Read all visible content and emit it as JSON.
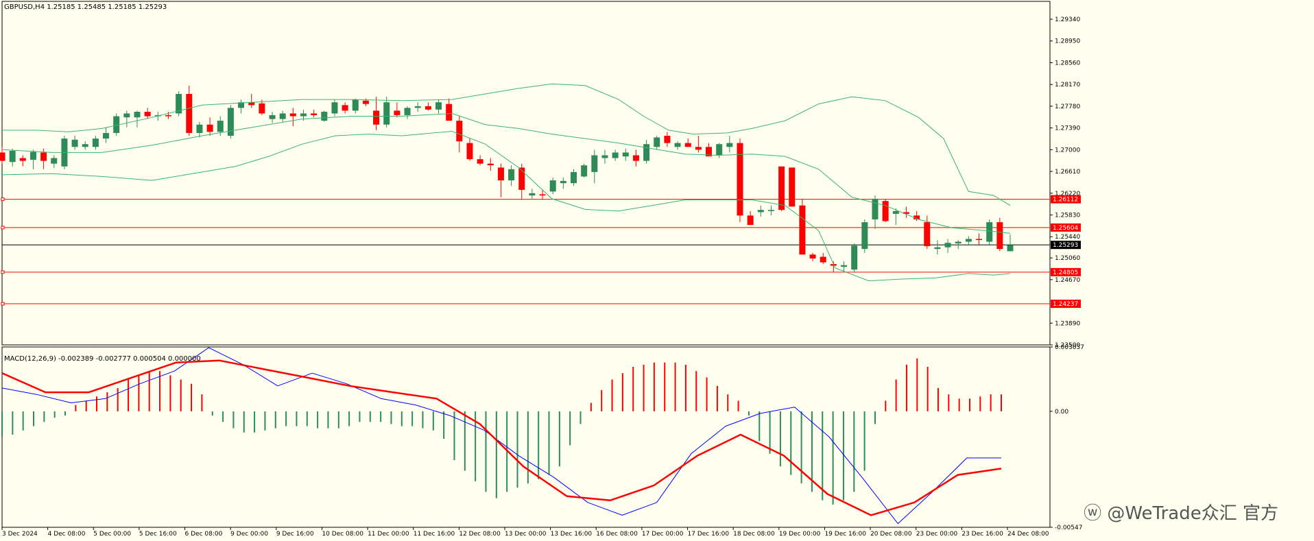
{
  "colors": {
    "background": "#fffff0",
    "bull": "#2e8b57",
    "bear": "#ff0000",
    "bands": "#3cb371",
    "level_line": "#ff0000",
    "current_line": "#000000",
    "macd_line": "#0000ff",
    "signal_line": "#ff0000"
  },
  "main_header": "GBPUSD,H4  1.25185 1.25485 1.25185 1.25293",
  "macd_header": "MACD(12,26,9) -0.002389 -0.002777 0.000504 0.000000",
  "watermark": "ⓦ @WeTrade众汇 官方",
  "chart_data": [
    {
      "type": "candlestick",
      "symbol": "GBPUSD",
      "timeframe": "H4",
      "ohlc_header": {
        "open": 1.25185,
        "high": 1.25485,
        "low": 1.25185,
        "close": 1.25293
      },
      "y_range": [
        1.235,
        1.2966
      ],
      "y_ticks": [
        "1.29340",
        "1.28950",
        "1.28560",
        "1.28170",
        "1.27780",
        "1.27390",
        "1.27000",
        "1.26610",
        "1.26220",
        "1.25830",
        "1.25440",
        "1.25060",
        "1.24670",
        "1.23890",
        "1.23500"
      ],
      "x_labels": [
        "3 Dec 2024",
        "4 Dec 08:00",
        "5 Dec 00:00",
        "5 Dec 16:00",
        "6 Dec 08:00",
        "9 Dec 00:00",
        "9 Dec 16:00",
        "10 Dec 08:00",
        "11 Dec 00:00",
        "11 Dec 16:00",
        "12 Dec 08:00",
        "13 Dec 00:00",
        "13 Dec 16:00",
        "16 Dec 08:00",
        "17 Dec 00:00",
        "17 Dec 16:00",
        "18 Dec 08:00",
        "19 Dec 00:00",
        "19 Dec 16:00",
        "20 Dec 08:00",
        "23 Dec 00:00",
        "23 Dec 16:00",
        "24 Dec 08:00"
      ],
      "levels": [
        {
          "label": "1.26112",
          "value": 1.26112,
          "color": "#ff0000"
        },
        {
          "label": "1.25604",
          "value": 1.25604,
          "color": "#ff0000"
        },
        {
          "label": "1.25293",
          "value": 1.25293,
          "color": "#000000"
        },
        {
          "label": "1.24805",
          "value": 1.24805,
          "color": "#ff0000"
        },
        {
          "label": "1.24237",
          "value": 1.24237,
          "color": "#ff0000"
        }
      ],
      "candles": [
        [
          1.2695,
          1.2705,
          1.2675,
          1.268
        ],
        [
          1.2678,
          1.2702,
          1.267,
          1.2698
        ],
        [
          1.2685,
          1.269,
          1.267,
          1.268
        ],
        [
          1.2682,
          1.27,
          1.2665,
          1.2696
        ],
        [
          1.2695,
          1.2702,
          1.2665,
          1.268
        ],
        [
          1.2675,
          1.269,
          1.2667,
          1.2685
        ],
        [
          1.267,
          1.2725,
          1.2665,
          1.272
        ],
        [
          1.2705,
          1.2725,
          1.27,
          1.2718
        ],
        [
          1.2705,
          1.2715,
          1.27,
          1.271
        ],
        [
          1.2705,
          1.2725,
          1.27,
          1.272
        ],
        [
          1.272,
          1.274,
          1.2712,
          1.273
        ],
        [
          1.273,
          1.2765,
          1.2725,
          1.276
        ],
        [
          1.2758,
          1.277,
          1.274,
          1.2765
        ],
        [
          1.2758,
          1.277,
          1.274,
          1.2768
        ],
        [
          1.2768,
          1.2775,
          1.2755,
          1.276
        ],
        [
          1.276,
          1.2768,
          1.2752,
          1.2762
        ],
        [
          1.2762,
          1.2768,
          1.2755,
          1.276
        ],
        [
          1.2765,
          1.2805,
          1.276,
          1.28
        ],
        [
          1.28,
          1.2815,
          1.2725,
          1.273
        ],
        [
          1.273,
          1.275,
          1.2722,
          1.2745
        ],
        [
          1.2745,
          1.2758,
          1.2725,
          1.2732
        ],
        [
          1.2732,
          1.276,
          1.2725,
          1.2752
        ],
        [
          1.2725,
          1.278,
          1.272,
          1.2775
        ],
        [
          1.2775,
          1.279,
          1.2765,
          1.2785
        ],
        [
          1.2785,
          1.28,
          1.2775,
          1.278
        ],
        [
          1.2783,
          1.279,
          1.2762,
          1.2765
        ],
        [
          1.2755,
          1.2768,
          1.2748,
          1.2762
        ],
        [
          1.2755,
          1.277,
          1.275,
          1.2765
        ],
        [
          1.2765,
          1.2775,
          1.2742,
          1.276
        ],
        [
          1.276,
          1.2772,
          1.2752,
          1.2765
        ],
        [
          1.2765,
          1.2772,
          1.2758,
          1.2762
        ],
        [
          1.2752,
          1.277,
          1.275,
          1.2768
        ],
        [
          1.2765,
          1.279,
          1.276,
          1.2785
        ],
        [
          1.278,
          1.2785,
          1.2765,
          1.277
        ],
        [
          1.277,
          1.2792,
          1.2765,
          1.279
        ],
        [
          1.2788,
          1.2792,
          1.2778,
          1.2782
        ],
        [
          1.277,
          1.2795,
          1.2735,
          1.2745
        ],
        [
          1.2745,
          1.2795,
          1.274,
          1.2785
        ],
        [
          1.277,
          1.2785,
          1.2758,
          1.2762
        ],
        [
          1.2762,
          1.2778,
          1.2755,
          1.2775
        ],
        [
          1.2775,
          1.2785,
          1.2768,
          1.2778
        ],
        [
          1.2778,
          1.2785,
          1.277,
          1.2772
        ],
        [
          1.2772,
          1.279,
          1.2765,
          1.2785
        ],
        [
          1.2782,
          1.2792,
          1.2755,
          1.2752
        ],
        [
          1.2752,
          1.276,
          1.2695,
          1.2715
        ],
        [
          1.2712,
          1.272,
          1.268,
          1.2683
        ],
        [
          1.2683,
          1.269,
          1.2672,
          1.2675
        ],
        [
          1.2675,
          1.2685,
          1.2662,
          1.2672
        ],
        [
          1.2668,
          1.2675,
          1.2615,
          1.2645
        ],
        [
          1.2645,
          1.2672,
          1.2635,
          1.2665
        ],
        [
          1.2668,
          1.2675,
          1.261,
          1.2628
        ],
        [
          1.2618,
          1.263,
          1.2612,
          1.2622
        ],
        [
          1.262,
          1.2628,
          1.261,
          1.2618
        ],
        [
          1.2625,
          1.265,
          1.262,
          1.2645
        ],
        [
          1.264,
          1.265,
          1.263,
          1.2644
        ],
        [
          1.264,
          1.2665,
          1.2635,
          1.266
        ],
        [
          1.2652,
          1.2675,
          1.265,
          1.2672
        ],
        [
          1.266,
          1.27,
          1.264,
          1.269
        ],
        [
          1.2685,
          1.27,
          1.2675,
          1.269
        ],
        [
          1.2685,
          1.27,
          1.268,
          1.2695
        ],
        [
          1.2688,
          1.2702,
          1.268,
          1.2695
        ],
        [
          1.269,
          1.27,
          1.267,
          1.268
        ],
        [
          1.268,
          1.2718,
          1.2675,
          1.271
        ],
        [
          1.2705,
          1.2725,
          1.27,
          1.2722
        ],
        [
          1.2725,
          1.2732,
          1.2705,
          1.2712
        ],
        [
          1.2705,
          1.2715,
          1.27,
          1.2712
        ],
        [
          1.2712,
          1.272,
          1.2705,
          1.2705
        ],
        [
          1.2705,
          1.2725,
          1.2695,
          1.27
        ],
        [
          1.2705,
          1.2712,
          1.2688,
          1.2688
        ],
        [
          1.269,
          1.2712,
          1.2685,
          1.271
        ],
        [
          1.2705,
          1.2725,
          1.2695,
          1.2712
        ],
        [
          1.2712,
          1.272,
          1.257,
          1.2582
        ],
        [
          1.2582,
          1.259,
          1.2565,
          1.2565
        ],
        [
          1.2588,
          1.26,
          1.258,
          1.2592
        ],
        [
          1.259,
          1.26,
          1.2582,
          1.2592
        ],
        [
          1.267,
          1.267,
          1.259,
          1.2592
        ],
        [
          1.2668,
          1.2668,
          1.2598,
          1.2598
        ],
        [
          1.26,
          1.2612,
          1.2512,
          1.2512
        ],
        [
          1.2512,
          1.2515,
          1.25,
          1.2505
        ],
        [
          1.2508,
          1.2515,
          1.2495,
          1.2498
        ],
        [
          1.2495,
          1.25,
          1.248,
          1.2492
        ],
        [
          1.249,
          1.25,
          1.2482,
          1.2493
        ],
        [
          1.2485,
          1.2532,
          1.248,
          1.2528
        ],
        [
          1.2522,
          1.2575,
          1.2515,
          1.257
        ],
        [
          1.2575,
          1.2618,
          1.2558,
          1.2612
        ],
        [
          1.2608,
          1.2612,
          1.257,
          1.2572
        ],
        [
          1.2585,
          1.2595,
          1.2565,
          1.259
        ],
        [
          1.2588,
          1.2598,
          1.2578,
          1.2585
        ],
        [
          1.2582,
          1.259,
          1.2572,
          1.2575
        ],
        [
          1.257,
          1.2582,
          1.2522,
          1.2527
        ],
        [
          1.2522,
          1.2538,
          1.2512,
          1.2525
        ],
        [
          1.2525,
          1.254,
          1.2515,
          1.2533
        ],
        [
          1.2532,
          1.2538,
          1.2522,
          1.2535
        ],
        [
          1.2535,
          1.2545,
          1.2528,
          1.254
        ],
        [
          1.254,
          1.255,
          1.253,
          1.2538
        ],
        [
          1.2535,
          1.2575,
          1.253,
          1.257
        ],
        [
          1.257,
          1.2578,
          1.2518,
          1.2522
        ],
        [
          1.2518,
          1.2548,
          1.2518,
          1.2529
        ]
      ],
      "bollinger": {
        "upper": [
          [
            0,
            1.2735
          ],
          [
            40,
            1.2735
          ],
          [
            80,
            1.2732
          ],
          [
            120,
            1.2738
          ],
          [
            180,
            1.2758
          ],
          [
            240,
            1.278
          ],
          [
            300,
            1.2785
          ],
          [
            360,
            1.279
          ],
          [
            420,
            1.279
          ],
          [
            480,
            1.2788
          ],
          [
            540,
            1.279
          ],
          [
            580,
            1.28
          ],
          [
            620,
            1.281
          ],
          [
            660,
            1.2818
          ],
          [
            700,
            1.2815
          ],
          [
            740,
            1.279
          ],
          [
            770,
            1.276
          ],
          [
            800,
            1.2735
          ],
          [
            830,
            1.2728
          ],
          [
            870,
            1.273
          ],
          [
            900,
            1.2738
          ],
          [
            940,
            1.2752
          ],
          [
            980,
            1.2782
          ],
          [
            1020,
            1.2795
          ],
          [
            1060,
            1.2788
          ],
          [
            1100,
            1.2758
          ],
          [
            1130,
            1.272
          ],
          [
            1160,
            1.2625
          ],
          [
            1190,
            1.2618
          ],
          [
            1210,
            1.26
          ]
        ],
        "middle": [
          [
            0,
            1.27
          ],
          [
            60,
            1.2695
          ],
          [
            120,
            1.2695
          ],
          [
            180,
            1.2708
          ],
          [
            240,
            1.2725
          ],
          [
            300,
            1.274
          ],
          [
            360,
            1.2755
          ],
          [
            420,
            1.276
          ],
          [
            480,
            1.276
          ],
          [
            540,
            1.2765
          ],
          [
            580,
            1.2745
          ],
          [
            620,
            1.2738
          ],
          [
            660,
            1.2728
          ],
          [
            700,
            1.272
          ],
          [
            740,
            1.2712
          ],
          [
            780,
            1.2702
          ],
          [
            820,
            1.2692
          ],
          [
            860,
            1.269
          ],
          [
            900,
            1.2692
          ],
          [
            940,
            1.2688
          ],
          [
            980,
            1.2665
          ],
          [
            1020,
            1.2615
          ],
          [
            1060,
            1.26
          ],
          [
            1100,
            1.2575
          ],
          [
            1140,
            1.256
          ],
          [
            1180,
            1.2555
          ],
          [
            1210,
            1.255
          ]
        ],
        "lower": [
          [
            0,
            1.2655
          ],
          [
            60,
            1.2657
          ],
          [
            120,
            1.2652
          ],
          [
            180,
            1.2645
          ],
          [
            240,
            1.266
          ],
          [
            280,
            1.267
          ],
          [
            320,
            1.2688
          ],
          [
            360,
            1.271
          ],
          [
            400,
            1.2725
          ],
          [
            440,
            1.2728
          ],
          [
            480,
            1.2725
          ],
          [
            540,
            1.2733
          ],
          [
            580,
            1.271
          ],
          [
            620,
            1.2668
          ],
          [
            660,
            1.2612
          ],
          [
            700,
            1.2593
          ],
          [
            740,
            1.259
          ],
          [
            780,
            1.26
          ],
          [
            820,
            1.261
          ],
          [
            860,
            1.261
          ],
          [
            900,
            1.261
          ],
          [
            940,
            1.26
          ],
          [
            980,
            1.2555
          ],
          [
            1000,
            1.2488
          ],
          [
            1040,
            1.2465
          ],
          [
            1080,
            1.2468
          ],
          [
            1120,
            1.247
          ],
          [
            1160,
            1.2478
          ],
          [
            1190,
            1.2475
          ],
          [
            1210,
            1.2478
          ]
        ]
      }
    },
    {
      "type": "bar",
      "indicator": "MACD(12,26,9)",
      "values_header": {
        "macd": -0.002389,
        "signal": -0.002777,
        "histogram": 0.000504
      },
      "y_range": [
        -0.00547,
        0.003037
      ],
      "y_ticks": [
        "0.003037",
        "0.00",
        "-0.00547"
      ],
      "histogram": [
        -0.0012,
        -0.0011,
        -0.0009,
        -0.0007,
        -0.0005,
        -0.0003,
        -0.0002,
        0.0003,
        0.0005,
        0.0007,
        0.0009,
        0.0011,
        0.0015,
        0.0017,
        0.0019,
        0.0019,
        0.0017,
        0.0015,
        0.0013,
        0.0008,
        -0.0002,
        -0.0005,
        -0.0008,
        -0.001,
        -0.001,
        -0.0009,
        -0.0008,
        -0.0007,
        -0.0007,
        -0.0007,
        -0.0008,
        -0.0008,
        -0.0008,
        -0.0007,
        -0.0005,
        -0.0005,
        -0.0005,
        -0.0006,
        -0.0007,
        -0.0007,
        -0.0008,
        -0.0009,
        -0.0013,
        -0.0023,
        -0.0028,
        -0.0033,
        -0.0038,
        -0.0041,
        -0.0038,
        -0.0036,
        -0.0034,
        -0.0032,
        -0.003,
        -0.0026,
        -0.0016,
        -0.0006,
        0.0004,
        0.001,
        0.0015,
        0.0018,
        0.0021,
        0.0022,
        0.0023,
        0.0023,
        0.0023,
        0.0022,
        0.0019,
        0.0016,
        0.0012,
        0.0008,
        0.0005,
        -0.0002,
        -0.0014,
        -0.002,
        -0.0026,
        -0.003,
        -0.0034,
        -0.0038,
        -0.0042,
        -0.0044,
        -0.0042,
        -0.0038,
        -0.0028,
        -0.0006,
        0.0005,
        0.0015,
        0.0022,
        0.0025,
        0.0021,
        0.0011,
        0.0008,
        0.0006,
        0.0006,
        0.0007,
        0.0008,
        0.0008
      ],
      "macd_line": [
        0.0011,
        0.0008,
        0.0004,
        0.0006,
        0.0013,
        0.0019,
        0.003,
        0.0022,
        0.0012,
        0.0018,
        0.0013,
        0.0006,
        0.0003,
        -0.0002,
        -0.0009,
        -0.0021,
        -0.0031,
        -0.0043,
        -0.0049,
        -0.0043,
        -0.002,
        -0.0007,
        -0.0001,
        0.0002,
        -0.0012,
        -0.0032,
        -0.0053,
        -0.0038,
        -0.0022,
        -0.0022
      ],
      "signal_line": [
        0.0018,
        0.0009,
        0.0009,
        0.0016,
        0.0023,
        0.0024,
        0.002,
        0.0016,
        0.0012,
        0.0009,
        0.0006,
        -0.0006,
        -0.0026,
        -0.004,
        -0.0042,
        -0.0035,
        -0.0021,
        -0.0011,
        -0.0021,
        -0.0039,
        -0.0049,
        -0.0043,
        -0.003,
        -0.0027
      ]
    }
  ]
}
